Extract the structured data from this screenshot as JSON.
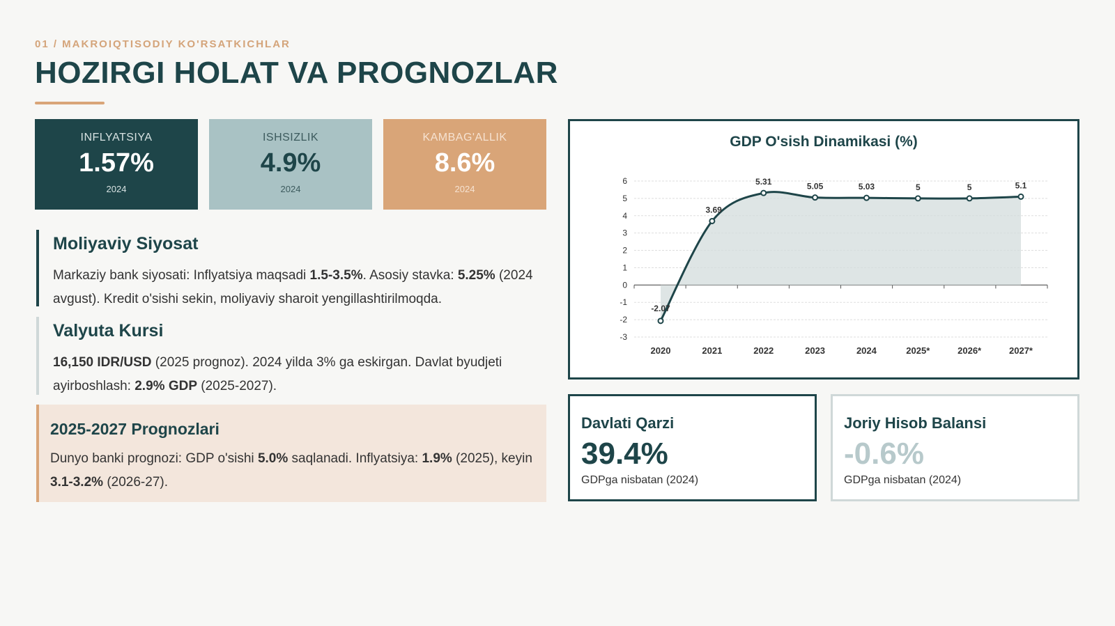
{
  "header": {
    "eyebrow": "01 / MAKROIQTISODIY KO'RSATKICHLAR",
    "title": "HOZIRGI HOLAT VA PROGNOZLAR"
  },
  "kpis": [
    {
      "label": "INFLYATSIYA",
      "value": "1.57%",
      "year": "2024"
    },
    {
      "label": "ISHSIZLIK",
      "value": "4.9%",
      "year": "2024"
    },
    {
      "label": "KAMBAG'ALLIK",
      "value": "8.6%",
      "year": "2024"
    }
  ],
  "sections": {
    "monetary": {
      "title": "Moliyaviy Siyosat",
      "t1": "Markaziy bank siyosati: Inflyatsiya maqsadi ",
      "b1": "1.5-3.5%",
      "t2": ". Asosiy stavka: ",
      "b2": "5.25%",
      "t3": " (2024 avgust). Kredit o'sishi sekin, moliyaviy sharoit yengillashtirilmoqda."
    },
    "currency": {
      "title": "Valyuta Kursi",
      "b1": "16,150 IDR/USD",
      "t1": " (2025 prognoz). 2024 yilda 3% ga eskirgan. Davlat byudjeti ayirboshlash: ",
      "b2": "2.9% GDP",
      "t2": " (2025-2027)."
    },
    "forecast": {
      "title": "2025-2027 Prognozlari",
      "t1": "Dunyo banki prognozi: GDP o'sishi ",
      "b1": "5.0%",
      "t2": " saqlanadi. Inflyatsiya: ",
      "b2": "1.9%",
      "t3": " (2025), keyin ",
      "b3": "3.1-3.2%",
      "t4": " (2026-27)."
    }
  },
  "cards": {
    "debt": {
      "title": "Davlati Qarzi",
      "value": "39.4%",
      "subtitle": "GDPga nisbatan (2024)"
    },
    "balance": {
      "title": "Joriy Hisob Balansi",
      "value": "-0.6%",
      "subtitle": "GDPga nisbatan (2024)"
    }
  },
  "chart_data": {
    "type": "area",
    "title": "GDP O'sish Dinamikasi (%)",
    "categories": [
      "2020",
      "2021",
      "2022",
      "2023",
      "2024",
      "2025*",
      "2026*",
      "2027*"
    ],
    "values": [
      -2.07,
      3.69,
      5.31,
      5.05,
      5.03,
      5,
      5,
      5.1
    ],
    "data_labels": [
      "-2.07",
      "3.69",
      "5.31",
      "5.05",
      "5.03",
      "5",
      "5",
      "5.1"
    ],
    "ylim": [
      -3,
      6
    ],
    "yticks": [
      "-3",
      "-2",
      "-1",
      "0",
      "1",
      "2",
      "3",
      "4",
      "5",
      "6"
    ],
    "grid": true,
    "legend": "none",
    "line_color": "#1e4549",
    "fill_color": "#d3dcdc"
  },
  "colors": {
    "primary": "#1e4549",
    "accent": "#d9a578",
    "muted": "#a9c2c4"
  }
}
